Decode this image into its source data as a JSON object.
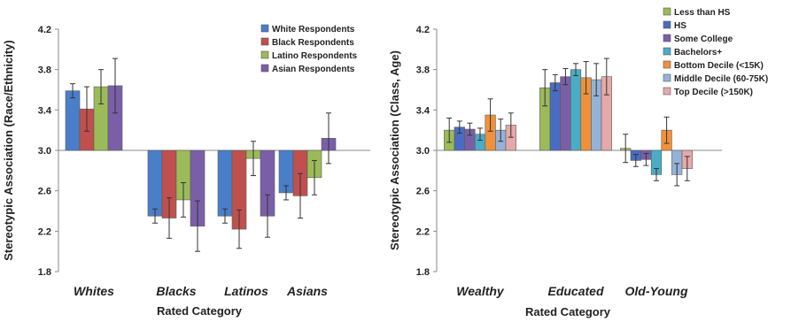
{
  "chart_data": [
    {
      "type": "bar",
      "ylabel": "Stereotypic Association (Race/Ethnicity)",
      "xlabel": "Rated Category",
      "ylim": [
        1.8,
        4.2
      ],
      "baseline": 3.0,
      "yticks": [
        "1.8",
        "2.2",
        "2.6",
        "3.0",
        "3.4",
        "3.8",
        "4.2"
      ],
      "categories": [
        "Whites",
        "Blacks",
        "Latinos",
        "Asians"
      ],
      "legend_position": "top-right",
      "series": [
        {
          "name": "White Respondents",
          "color": "#4a7ec8",
          "values": [
            3.59,
            2.35,
            2.35,
            2.58
          ],
          "errors": [
            0.07,
            0.07,
            0.07,
            0.07
          ]
        },
        {
          "name": "Black Respondents",
          "color": "#c0504d",
          "values": [
            3.41,
            2.33,
            2.22,
            2.55
          ],
          "errors": [
            0.22,
            0.2,
            0.19,
            0.22
          ]
        },
        {
          "name": "Latino Respondents",
          "color": "#9bbb59",
          "values": [
            3.63,
            2.51,
            2.92,
            2.73
          ],
          "errors": [
            0.17,
            0.17,
            0.17,
            0.17
          ]
        },
        {
          "name": "Asian Respondents",
          "color": "#7a5fa8",
          "values": [
            3.64,
            2.25,
            2.35,
            3.12
          ],
          "errors": [
            0.27,
            0.25,
            0.21,
            0.25
          ]
        }
      ]
    },
    {
      "type": "bar",
      "ylabel": "Stereotypic Association (Class, Age)",
      "xlabel": "Rated Category",
      "ylim": [
        1.8,
        4.2
      ],
      "baseline": 3.0,
      "yticks": [
        "1.8",
        "2.2",
        "2.6",
        "3.0",
        "3.4",
        "3.8",
        "4.2"
      ],
      "categories": [
        "Wealthy",
        "Educated",
        "Old-Young"
      ],
      "legend_position": "top-right",
      "series": [
        {
          "name": "Less than HS",
          "color": "#9bbb59",
          "values": [
            3.2,
            3.62,
            3.02
          ],
          "errors": [
            0.12,
            0.18,
            0.14
          ]
        },
        {
          "name": "HS",
          "color": "#4a6cc0",
          "values": [
            3.23,
            3.67,
            2.9
          ],
          "errors": [
            0.06,
            0.08,
            0.06
          ]
        },
        {
          "name": "Some College",
          "color": "#7a5fa8",
          "values": [
            3.21,
            3.73,
            2.91
          ],
          "errors": [
            0.06,
            0.08,
            0.06
          ]
        },
        {
          "name": "Bachelors+",
          "color": "#4bacc6",
          "values": [
            3.16,
            3.8,
            2.76
          ],
          "errors": [
            0.06,
            0.06,
            0.06
          ]
        },
        {
          "name": "Bottom Decile (<15K)",
          "color": "#f0913a",
          "values": [
            3.35,
            3.72,
            3.2
          ],
          "errors": [
            0.16,
            0.16,
            0.13
          ]
        },
        {
          "name": "Middle Decile (60-75K)",
          "color": "#95b3d7",
          "values": [
            3.2,
            3.7,
            2.76
          ],
          "errors": [
            0.11,
            0.16,
            0.11
          ]
        },
        {
          "name": "Top Decile (>150K)",
          "color": "#e6a9a9",
          "values": [
            3.25,
            3.73,
            2.82
          ],
          "errors": [
            0.12,
            0.18,
            0.12
          ]
        }
      ]
    }
  ]
}
